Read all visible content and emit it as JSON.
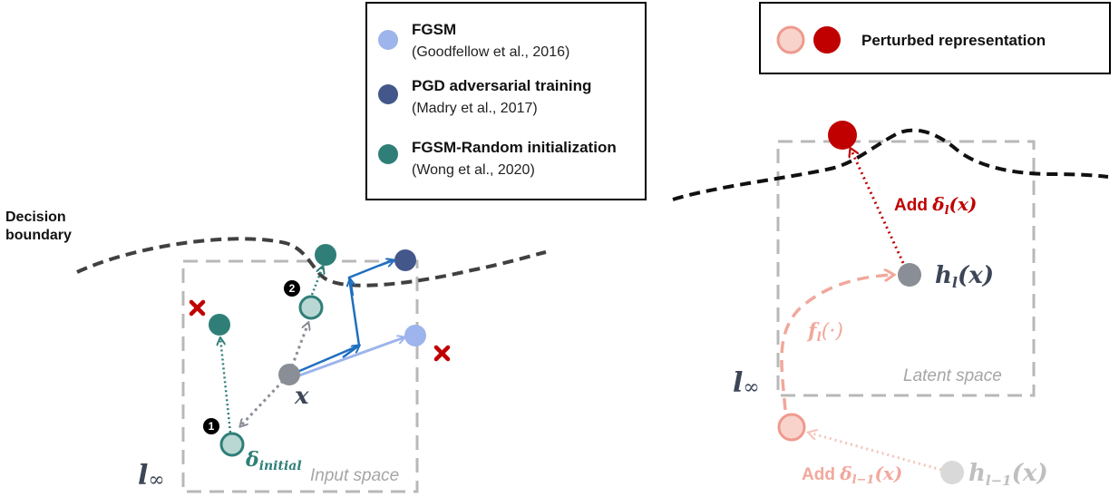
{
  "legend_left": {
    "items": [
      {
        "title": "FGSM",
        "citation": "(Goodfellow et al., 2016)",
        "color": "#9db4ec"
      },
      {
        "title": "PGD adversarial training",
        "citation": "(Madry et al., 2017)",
        "color": "#44578b"
      },
      {
        "title": "FGSM-Random initialization",
        "citation": "(Wong et al., 2020)",
        "color": "#2f7f78"
      }
    ]
  },
  "legend_right": {
    "label": "Perturbed representation",
    "colors": [
      "#f1a89c",
      "#c00000"
    ]
  },
  "left_panel": {
    "decision_boundary_line1": "Decision",
    "decision_boundary_line2": "boundary",
    "x_label": "x",
    "delta_symbol": "δ",
    "delta_sub": "initial",
    "norm_symbol": "l",
    "norm_sub": "∞",
    "space_label": "Input space",
    "step_1": "1",
    "step_2": "2"
  },
  "right_panel": {
    "norm_symbol": "l",
    "norm_sub": "∞",
    "space_label": "Latent space",
    "h_l": "h",
    "h_l_sub": "l",
    "h_l_arg": "(x)",
    "h_prev": "h",
    "h_prev_sub": "l−1",
    "h_prev_arg": "(x)",
    "f_l": "f",
    "f_l_sub": "l",
    "f_l_arg": "(·)",
    "add_top_prefix": "Add ",
    "add_top_delta": "δ",
    "add_top_sub": "l",
    "add_top_arg": "(x)",
    "add_bottom_prefix": "Add ",
    "add_bottom_delta": "δ",
    "add_bottom_sub": "l−1",
    "add_bottom_arg": "(x)"
  },
  "colors": {
    "fgsm": "#9db4ec",
    "pgd": "#44578b",
    "random": "#2f7f78",
    "origin": "#8a8e96",
    "perturbed_light": "#f1a89c",
    "perturbed_dark": "#c00000",
    "cross": "#c00000",
    "gray_text": "#a6a6a6",
    "arrow_blue": "#1f6fc0"
  }
}
